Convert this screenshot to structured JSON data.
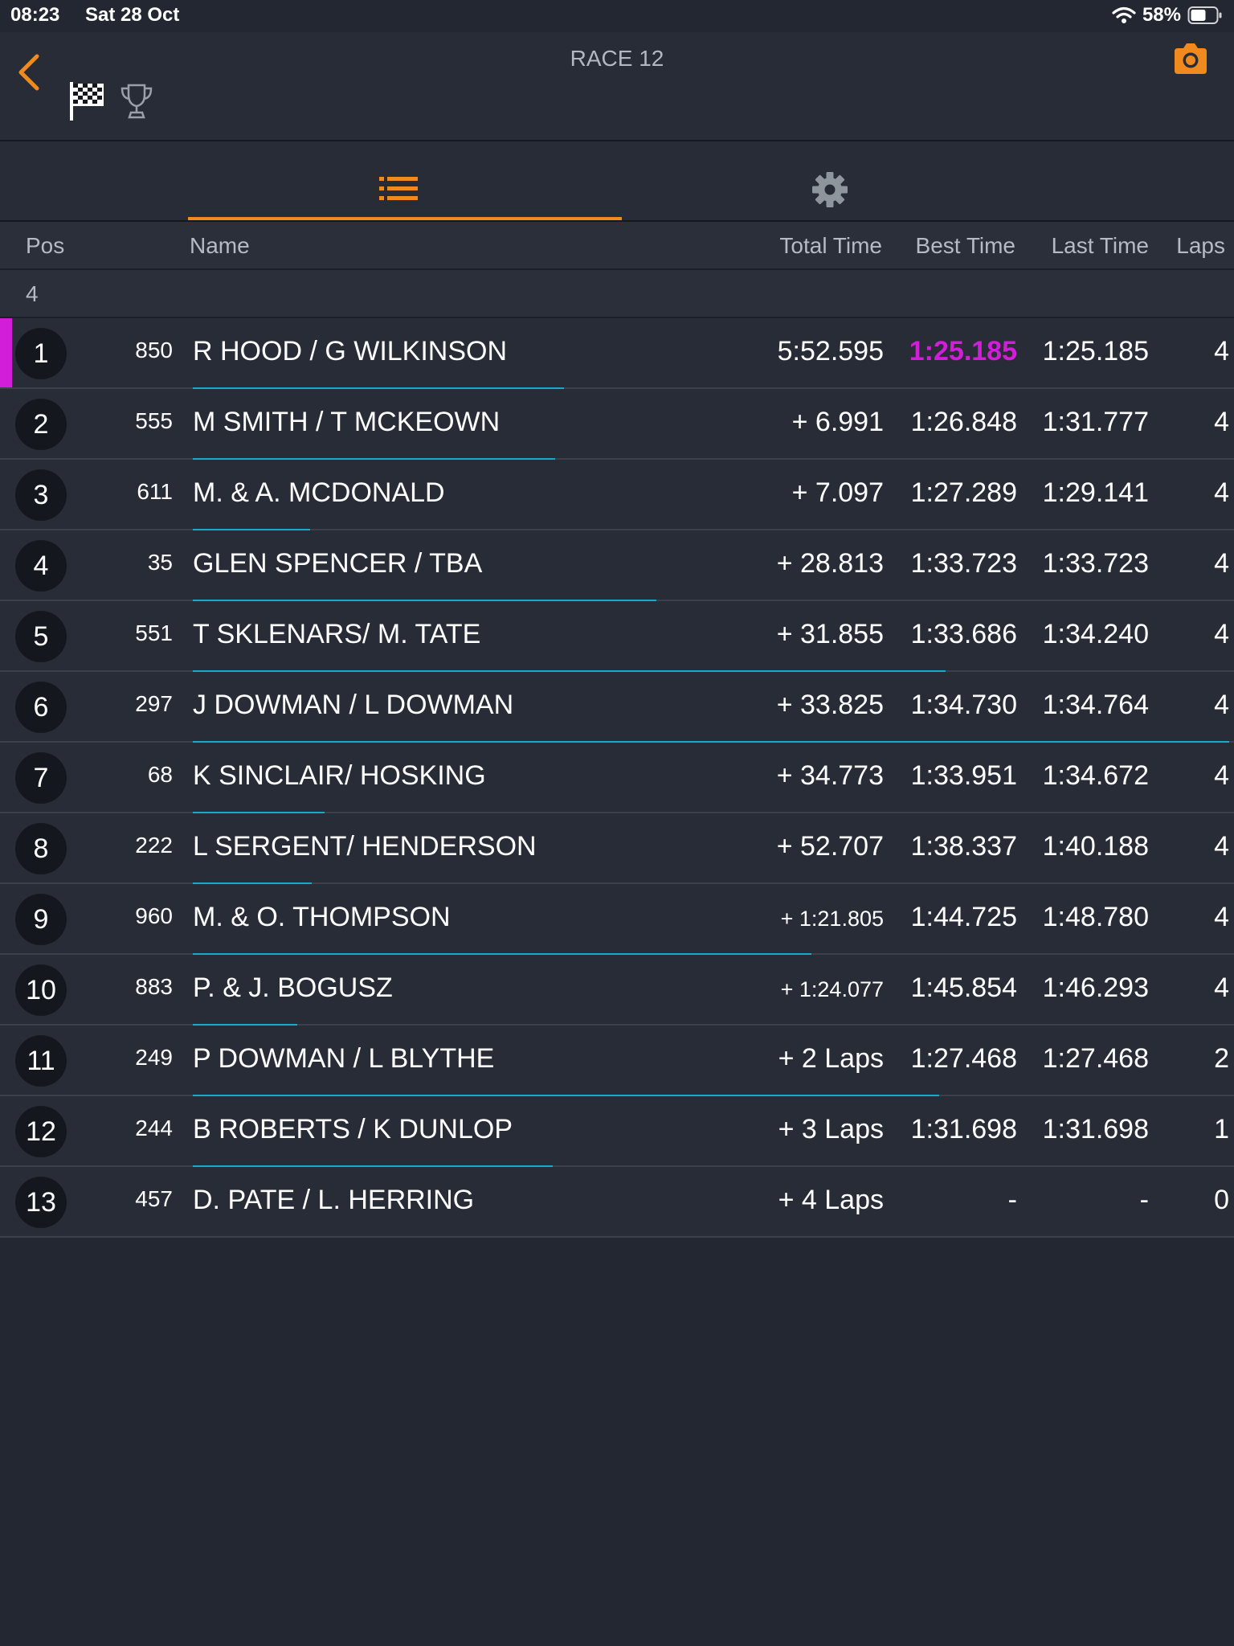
{
  "status_bar": {
    "time": "08:23",
    "date": "Sat 28 Oct",
    "battery": "58%"
  },
  "header": {
    "title": "RACE 12",
    "back_icon": "chevron-left-icon",
    "camera_icon": "camera-icon",
    "flag_icon": "checkered-flag-icon",
    "trophy_icon": "trophy-icon"
  },
  "tabs": [
    {
      "icon": "list-icon",
      "selected": true
    },
    {
      "icon": "gear-icon",
      "selected": false
    }
  ],
  "columns": {
    "pos": "Pos",
    "name": "Name",
    "total": "Total Time",
    "best": "Best Time",
    "last": "Last Time",
    "laps": "Laps"
  },
  "group": {
    "label": "4"
  },
  "colors": {
    "accent": "#f08a1e",
    "fastest": "#d21ed9",
    "progress": "#1ba7c7"
  },
  "results": [
    {
      "pos": "1",
      "num": "850",
      "name": "R HOOD / G WILKINSON",
      "total": "5:52.595",
      "best": "1:25.185",
      "last": "1:25.185",
      "laps": "4",
      "fastest": true,
      "leader": true,
      "progress": 0.358
    },
    {
      "pos": "2",
      "num": "555",
      "name": "M SMITH / T MCKEOWN",
      "total": "+ 6.991",
      "best": "1:26.848",
      "last": "1:31.777",
      "laps": "4",
      "progress": 0.35
    },
    {
      "pos": "3",
      "num": "611",
      "name": "M. & A. MCDONALD",
      "total": "+ 7.097",
      "best": "1:27.289",
      "last": "1:29.141",
      "laps": "4",
      "progress": 0.113
    },
    {
      "pos": "4",
      "num": "35",
      "name": "GLEN SPENCER / TBA",
      "total": "+ 28.813",
      "best": "1:33.723",
      "last": "1:33.723",
      "laps": "4",
      "progress": 0.447
    },
    {
      "pos": "5",
      "num": "551",
      "name": "T SKLENARS/ M. TATE",
      "total": "+ 31.855",
      "best": "1:33.686",
      "last": "1:34.240",
      "laps": "4",
      "progress": 0.726
    },
    {
      "pos": "6",
      "num": "297",
      "name": "J DOWMAN / L DOWMAN",
      "total": "+ 33.825",
      "best": "1:34.730",
      "last": "1:34.764",
      "laps": "4",
      "progress": 1.0
    },
    {
      "pos": "7",
      "num": "68",
      "name": "K SINCLAIR/ HOSKING",
      "total": "+ 34.773",
      "best": "1:33.951",
      "last": "1:34.672",
      "laps": "4",
      "progress": 0.127
    },
    {
      "pos": "8",
      "num": "222",
      "name": "L SERGENT/ HENDERSON",
      "total": "+ 52.707",
      "best": "1:38.337",
      "last": "1:40.188",
      "laps": "4",
      "progress": 0.115
    },
    {
      "pos": "9",
      "num": "960",
      "name": "M. & O. THOMPSON",
      "total": "+ 1:21.805",
      "best": "1:44.725",
      "last": "1:48.780",
      "laps": "4",
      "progress": 0.597,
      "small_total": true
    },
    {
      "pos": "10",
      "num": "883",
      "name": "P. & J. BOGUSZ",
      "total": "+ 1:24.077",
      "best": "1:45.854",
      "last": "1:46.293",
      "laps": "4",
      "progress": 0.101,
      "small_total": true
    },
    {
      "pos": "11",
      "num": "249",
      "name": "P DOWMAN / L BLYTHE",
      "total": "+ 2 Laps",
      "best": "1:27.468",
      "last": "1:27.468",
      "laps": "2",
      "progress": 0.72
    },
    {
      "pos": "12",
      "num": "244",
      "name": "B ROBERTS / K DUNLOP",
      "total": "+ 3 Laps",
      "best": "1:31.698",
      "last": "1:31.698",
      "laps": "1",
      "progress": 0.347
    },
    {
      "pos": "13",
      "num": "457",
      "name": "D. PATE / L. HERRING",
      "total": "+ 4 Laps",
      "best": "-",
      "last": "-",
      "laps": "0",
      "progress": 0.0
    }
  ]
}
